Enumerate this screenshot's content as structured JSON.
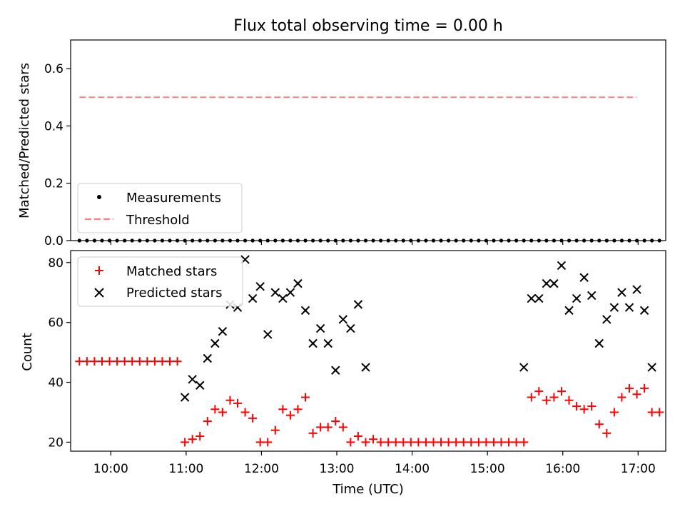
{
  "chart_data": [
    {
      "type": "scatter",
      "title": "Flux total observing time = 0.00 h",
      "xlabel": "",
      "ylabel": "Matched/Predicted stars",
      "xlim": [
        "09:28",
        "17:22"
      ],
      "ylim": [
        0.0,
        0.7
      ],
      "yticks": [
        0.0,
        0.2,
        0.4,
        0.6
      ],
      "grid": false,
      "legend": "lower-left",
      "series": [
        {
          "name": "Measurements",
          "kind": "points",
          "color": "#000000",
          "x": [
            "09:35",
            "09:41",
            "09:47",
            "09:53",
            "09:59",
            "10:05",
            "10:11",
            "10:17",
            "10:23",
            "10:29",
            "10:35",
            "10:41",
            "10:47",
            "10:53",
            "10:59",
            "11:05",
            "11:11",
            "11:17",
            "11:23",
            "11:29",
            "11:35",
            "11:41",
            "11:47",
            "11:53",
            "11:59",
            "12:05",
            "12:11",
            "12:17",
            "12:23",
            "12:29",
            "12:35",
            "12:41",
            "12:47",
            "12:53",
            "12:59",
            "13:05",
            "13:11",
            "13:17",
            "13:23",
            "13:29",
            "13:35",
            "13:41",
            "13:47",
            "13:53",
            "13:59",
            "14:05",
            "14:11",
            "14:17",
            "14:23",
            "14:29",
            "14:35",
            "14:41",
            "14:47",
            "14:53",
            "14:59",
            "15:05",
            "15:11",
            "15:17",
            "15:23",
            "15:29",
            "15:35",
            "15:41",
            "15:47",
            "15:53",
            "15:59",
            "16:05",
            "16:11",
            "16:17",
            "16:23",
            "16:29",
            "16:35",
            "16:41",
            "16:47",
            "16:53",
            "16:59",
            "17:05",
            "17:11",
            "17:17"
          ],
          "y": [
            0,
            0,
            0,
            0,
            0,
            0,
            0,
            0,
            0,
            0,
            0,
            0,
            0,
            0,
            0,
            0,
            0,
            0,
            0,
            0,
            0,
            0,
            0,
            0,
            0,
            0,
            0,
            0,
            0,
            0,
            0,
            0,
            0,
            0,
            0,
            0,
            0,
            0,
            0,
            0,
            0,
            0,
            0,
            0,
            0,
            0,
            0,
            0,
            0,
            0,
            0,
            0,
            0,
            0,
            0,
            0,
            0,
            0,
            0,
            0,
            0,
            0,
            0,
            0,
            0,
            0,
            0,
            0,
            0,
            0,
            0,
            0,
            0,
            0,
            0,
            0,
            0,
            0
          ]
        },
        {
          "name": "Threshold",
          "kind": "dashed-line",
          "color": "#ff7f7f",
          "x": [
            "09:35",
            "16:59"
          ],
          "y": [
            0.5,
            0.5
          ]
        }
      ]
    },
    {
      "type": "scatter",
      "title": "",
      "xlabel": "Time (UTC)",
      "ylabel": "Count",
      "xlim": [
        "09:28",
        "17:22"
      ],
      "ylim": [
        17,
        84
      ],
      "yticks": [
        20,
        40,
        60,
        80
      ],
      "xticks": [
        "10:00",
        "11:00",
        "12:00",
        "13:00",
        "14:00",
        "15:00",
        "16:00",
        "17:00"
      ],
      "grid": false,
      "legend": "upper-left",
      "series": [
        {
          "name": "Matched stars",
          "kind": "plus",
          "color": "#ff0000",
          "x": [
            "09:35",
            "09:41",
            "09:47",
            "09:53",
            "09:59",
            "10:05",
            "10:11",
            "10:17",
            "10:23",
            "10:29",
            "10:35",
            "10:41",
            "10:47",
            "10:53",
            "10:59",
            "11:05",
            "11:11",
            "11:17",
            "11:23",
            "11:29",
            "11:35",
            "11:41",
            "11:47",
            "11:53",
            "11:59",
            "12:05",
            "12:11",
            "12:17",
            "12:23",
            "12:29",
            "12:35",
            "12:41",
            "12:47",
            "12:53",
            "12:59",
            "13:05",
            "13:11",
            "13:17",
            "13:23",
            "13:29",
            "13:35",
            "13:41",
            "13:47",
            "13:53",
            "13:59",
            "14:05",
            "14:11",
            "14:17",
            "14:23",
            "14:29",
            "14:35",
            "14:41",
            "14:47",
            "14:53",
            "14:59",
            "15:05",
            "15:11",
            "15:17",
            "15:23",
            "15:29",
            "15:35",
            "15:41",
            "15:47",
            "15:53",
            "15:59",
            "16:05",
            "16:11",
            "16:17",
            "16:23",
            "16:29",
            "16:35",
            "16:41",
            "16:47",
            "16:53",
            "16:59",
            "17:05",
            "17:11",
            "17:17"
          ],
          "y": [
            47,
            47,
            47,
            47,
            47,
            47,
            47,
            47,
            47,
            47,
            47,
            47,
            47,
            47,
            20,
            21,
            22,
            27,
            31,
            30,
            34,
            33,
            30,
            28,
            20,
            20,
            24,
            31,
            29,
            31,
            35,
            23,
            25,
            25,
            27,
            25,
            20,
            22,
            20,
            21,
            20,
            20,
            20,
            20,
            20,
            20,
            20,
            20,
            20,
            20,
            20,
            20,
            20,
            20,
            20,
            20,
            20,
            20,
            20,
            20,
            35,
            37,
            34,
            35,
            37,
            34,
            32,
            31,
            32,
            26,
            23,
            30,
            35,
            38,
            36,
            38,
            30,
            30
          ]
        },
        {
          "name": "Predicted stars",
          "kind": "x",
          "color": "#000000",
          "x": [
            "10:59",
            "11:05",
            "11:11",
            "11:17",
            "11:23",
            "11:29",
            "11:35",
            "11:41",
            "11:47",
            "11:53",
            "11:59",
            "12:05",
            "12:11",
            "12:17",
            "12:23",
            "12:29",
            "12:35",
            "12:41",
            "12:47",
            "12:53",
            "12:59",
            "13:05",
            "13:11",
            "13:17",
            "13:23",
            "15:29",
            "15:35",
            "15:41",
            "15:47",
            "15:53",
            "15:59",
            "16:05",
            "16:11",
            "16:17",
            "16:23",
            "16:29",
            "16:35",
            "16:41",
            "16:47",
            "16:53",
            "16:59",
            "17:05",
            "17:11"
          ],
          "y": [
            35,
            41,
            39,
            48,
            53,
            57,
            66,
            65,
            81,
            68,
            72,
            56,
            70,
            68,
            70,
            73,
            64,
            53,
            58,
            53,
            44,
            61,
            58,
            66,
            45,
            45,
            68,
            68,
            73,
            73,
            79,
            64,
            68,
            75,
            69,
            53,
            61,
            65,
            70,
            65,
            71,
            64,
            45
          ]
        }
      ]
    }
  ]
}
